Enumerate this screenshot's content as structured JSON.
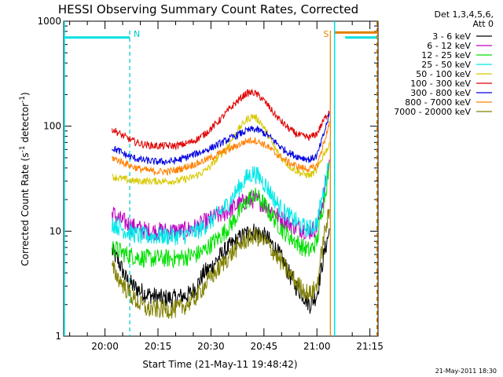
{
  "chart_data": {
    "type": "line",
    "title": "HESSI Observing Summary Count Rates, Corrected",
    "xlabel": "Start Time (21-May-11 19:48:42)",
    "ylabel_main": "Corrected Count Rate (s",
    "ylabel_sup1": "-1",
    "ylabel_mid": " detector",
    "ylabel_sup2": "-1",
    "ylabel_end": ")",
    "yscale": "log",
    "ylim": [
      1,
      1000
    ],
    "xlim_minutes": [
      -11.7,
      77.3
    ],
    "x_ticks": [
      {
        "label": "20:00",
        "minute": 0
      },
      {
        "label": "20:15",
        "minute": 15
      },
      {
        "label": "20:30",
        "minute": 30
      },
      {
        "label": "20:45",
        "minute": 45
      },
      {
        "label": "21:00",
        "minute": 60
      },
      {
        "label": "21:15",
        "minute": 75
      }
    ],
    "y_ticks": [
      {
        "label": "1",
        "value": 1
      },
      {
        "label": "10",
        "value": 10
      },
      {
        "label": "100",
        "value": 100
      },
      {
        "label": "1000",
        "value": 1000
      }
    ],
    "legend_header": [
      "Det 1,3,4,5,6,",
      "Att 0"
    ],
    "legend_position": "right",
    "x_minutes": [
      2.0,
      4.0,
      6.0,
      8.0,
      10.0,
      12.0,
      14.0,
      16.0,
      18.0,
      20.0,
      22.0,
      24.0,
      26.0,
      28.0,
      30.0,
      32.0,
      34.0,
      36.0,
      38.0,
      40.0,
      42.0,
      44.0,
      46.0,
      48.0,
      50.0,
      52.0,
      54.0,
      56.0,
      58.0,
      60.0,
      62.0,
      63.5
    ],
    "series": [
      {
        "name": "3 - 6 keV",
        "color": "#000000",
        "values": [
          6.5,
          5.0,
          3.5,
          3.0,
          2.7,
          2.5,
          2.4,
          2.3,
          2.3,
          2.3,
          2.4,
          2.5,
          3.0,
          4.0,
          4.5,
          5.5,
          6.5,
          7.5,
          8.5,
          9.5,
          10.0,
          9.5,
          8.5,
          7.0,
          5.5,
          4.0,
          3.0,
          2.5,
          2.0,
          2.5,
          6.0,
          10.0
        ]
      },
      {
        "name": "6 - 12 keV",
        "color": "#c000c0",
        "values": [
          15,
          13,
          12,
          11,
          10.5,
          10,
          10,
          10,
          10,
          10,
          10,
          10.5,
          11,
          12,
          13,
          14,
          15,
          16.5,
          18,
          19.5,
          20,
          19,
          17,
          15,
          13,
          12,
          11,
          10.5,
          10,
          11,
          22,
          45
        ]
      },
      {
        "name": "12 - 25 keV",
        "color": "#00e000",
        "values": [
          7.0,
          6.5,
          6.0,
          5.8,
          5.6,
          5.5,
          5.5,
          5.5,
          5.5,
          5.5,
          5.6,
          5.8,
          6.0,
          6.5,
          7.5,
          8.5,
          10,
          12,
          15,
          19,
          22,
          20,
          16,
          13,
          10.5,
          9,
          8,
          7,
          6.5,
          8,
          20,
          40
        ]
      },
      {
        "name": "25 - 50 keV",
        "color": "#00e8e8",
        "values": [
          12,
          11,
          10,
          9.5,
          9,
          9,
          9,
          9,
          9,
          9,
          9,
          9.5,
          10,
          11,
          12.5,
          14.5,
          17,
          21,
          26,
          32,
          36,
          32,
          26,
          20,
          16,
          14,
          12.5,
          11,
          10.5,
          12,
          25,
          50
        ]
      },
      {
        "name": "50 - 100 keV",
        "color": "#d8c800",
        "values": [
          33,
          32,
          31,
          30,
          30,
          30,
          30,
          30,
          30,
          30,
          31,
          32,
          34,
          37,
          42,
          50,
          60,
          75,
          95,
          115,
          125,
          110,
          85,
          62,
          50,
          42,
          38,
          35,
          34,
          38,
          55,
          65
        ]
      },
      {
        "name": "100 - 300 keV",
        "color": "#e00000",
        "values": [
          95,
          85,
          78,
          72,
          68,
          66,
          65,
          65,
          65,
          65,
          67,
          70,
          75,
          83,
          95,
          110,
          130,
          155,
          180,
          205,
          210,
          190,
          160,
          130,
          110,
          95,
          85,
          80,
          78,
          85,
          115,
          140
        ]
      },
      {
        "name": "300 - 800 keV",
        "color": "#0000e0",
        "values": [
          62,
          58,
          53,
          50,
          48,
          47,
          46,
          46,
          46,
          47,
          49,
          52,
          55,
          58,
          62,
          67,
          72,
          78,
          84,
          90,
          94,
          90,
          82,
          72,
          62,
          56,
          52,
          50,
          48,
          52,
          85,
          130
        ]
      },
      {
        "name": "800 - 7000 keV",
        "color": "#ff8000",
        "values": [
          50,
          47,
          44,
          41,
          39,
          38,
          37,
          37,
          37,
          38,
          40,
          42,
          44,
          47,
          50,
          54,
          58,
          62,
          67,
          72,
          74,
          70,
          64,
          56,
          50,
          45,
          42,
          40,
          39,
          42,
          70,
          105
        ]
      },
      {
        "name": "7000 - 20000 keV",
        "color": "#808000",
        "values": [
          4.5,
          3.5,
          2.8,
          2.3,
          2.0,
          1.8,
          1.8,
          1.8,
          1.8,
          1.8,
          1.9,
          2.1,
          2.4,
          3.0,
          3.6,
          4.3,
          5.2,
          6.2,
          7.3,
          8.3,
          9.0,
          8.5,
          7.5,
          6.2,
          5.0,
          4.0,
          3.3,
          2.8,
          2.5,
          3.0,
          9.0,
          15.0
        ]
      }
    ],
    "night_segments": [
      {
        "start_minute": -11.7,
        "end_minute": 7.0,
        "level": 700
      },
      {
        "start_minute": 68.0,
        "end_minute": 77.3,
        "level": 700
      }
    ],
    "night_color": "#00e0e0",
    "saa_segment": {
      "start_minute": 65.0,
      "end_minute": 77.3,
      "level": 780
    },
    "saa_color": "#e08000",
    "markers": [
      {
        "label": "N",
        "minute": 7.0,
        "color": "#00c8c8",
        "style": "dashed"
      },
      {
        "label": "S",
        "minute": 63.8,
        "color": "#e08000",
        "style": "solid"
      }
    ],
    "vertical_lines": [
      {
        "minute": -11.5,
        "color": "#00e0e0",
        "style": "solid"
      },
      {
        "minute": 65.0,
        "color": "#00e0e0",
        "style": "solid"
      },
      {
        "minute": 77.0,
        "color": "#e08000",
        "style": "dashed"
      }
    ]
  },
  "footer": {
    "date": "21-May-2011 18:30"
  }
}
